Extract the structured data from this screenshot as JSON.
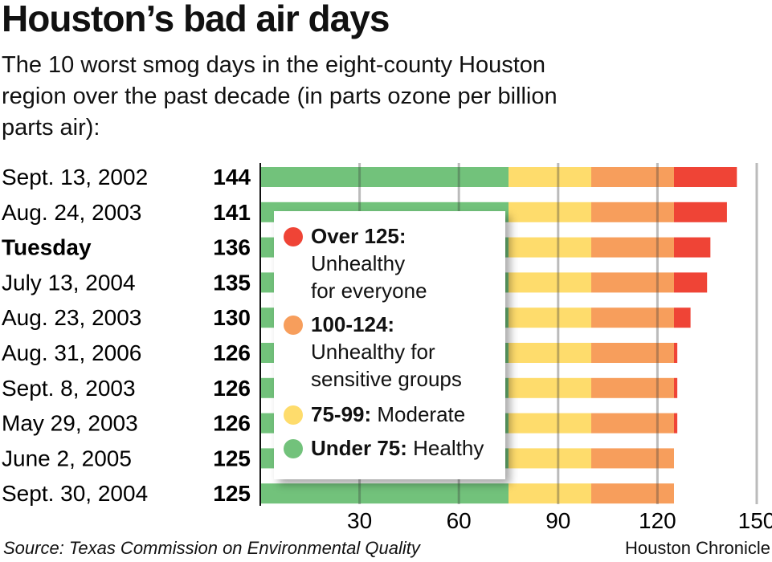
{
  "chart_data": {
    "type": "bar",
    "orientation": "horizontal",
    "stacked": true,
    "title": "Houston’s bad air days",
    "subtitle": "The 10 worst smog days in the eight-county Houston region over the past decade (in parts ozone per billion parts air):",
    "categories": [
      "Sept. 13, 2002",
      "Aug. 24, 2003",
      "Tuesday",
      "July 13, 2004",
      "Aug. 23, 2003",
      "Aug. 31, 2006",
      "Sept. 8, 2003",
      "May 29, 2003",
      "June 2, 2005",
      "Sept. 30, 2004"
    ],
    "bold_categories": [
      "Tuesday"
    ],
    "values": [
      144,
      141,
      136,
      135,
      130,
      126,
      126,
      126,
      125,
      125
    ],
    "bands": [
      {
        "from": 0,
        "to": 75,
        "color": "#72c27b",
        "label_bold": "Under 75:",
        "label": "Healthy"
      },
      {
        "from": 75,
        "to": 100,
        "color": "#fedc6c",
        "label_bold": "75-99:",
        "label": "Moderate"
      },
      {
        "from": 100,
        "to": 125,
        "color": "#f79e5c",
        "label_bold": "100-124:",
        "label": "Unhealthy for sensitive groups"
      },
      {
        "from": 125,
        "to": 999,
        "color": "#ef4436",
        "label_bold": "Over 125:",
        "label": "Unhealthy for everyone"
      }
    ],
    "xticks": [
      30,
      60,
      90,
      120,
      150
    ],
    "xlim": [
      0,
      150
    ],
    "grid": true
  },
  "legend": [
    {
      "bold": "Over 125:",
      "lines": [
        "Unhealthy",
        "for everyone"
      ],
      "color": "#ef4436"
    },
    {
      "bold": "100-124:",
      "lines": [
        "Unhealthy for",
        "sensitive groups"
      ],
      "color": "#f79e5c"
    },
    {
      "bold": "75-99:",
      "lines": [
        "Moderate"
      ],
      "color": "#fedc6c"
    },
    {
      "bold": "Under 75:",
      "lines": [
        "Healthy"
      ],
      "color": "#72c27b"
    }
  ],
  "source": "Source: Texas Commission on Environmental Quality",
  "credit": "Houston Chronicle"
}
